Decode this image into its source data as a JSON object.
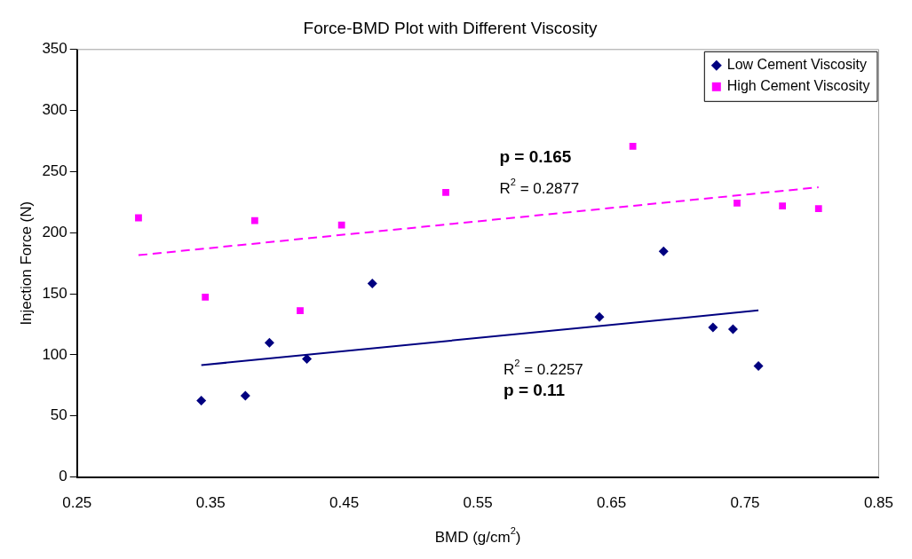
{
  "chart_data": {
    "type": "scatter",
    "title": "Force-BMD Plot with Different Viscosity",
    "xlabel": "BMD (g/cm$^{2}$)",
    "ylabel": "Injection Force (N)",
    "xlim": [
      0.25,
      0.85
    ],
    "xticks": [
      0.25,
      0.35,
      0.45,
      0.55,
      0.65,
      0.75,
      0.85
    ],
    "ylim": [
      0,
      350
    ],
    "yticks": [
      0,
      50,
      100,
      150,
      200,
      250,
      300,
      350
    ],
    "grid": false,
    "legend": "top right",
    "series": [
      {
        "name": "Low Cement Viscosity",
        "color": "#000080",
        "marker": "diamond",
        "x": [
          0.343,
          0.376,
          0.394,
          0.422,
          0.471,
          0.641,
          0.689,
          0.726,
          0.741,
          0.76
        ],
        "values": [
          62.6,
          66.6,
          110,
          96.7,
          158.5,
          131,
          184.8,
          122.5,
          121,
          90.8
        ]
      },
      {
        "name": "High Cement Viscosity",
        "color": "#ff00ff",
        "marker": "square",
        "x": [
          0.296,
          0.346,
          0.383,
          0.417,
          0.448,
          0.526,
          0.666,
          0.744,
          0.778,
          0.805
        ],
        "values": [
          212.2,
          147.2,
          210,
          136.2,
          206.3,
          233,
          270.7,
          224.3,
          221.9,
          219.7
        ]
      },
      {
        "type": "line",
        "color": "#000080",
        "marker": "none",
        "line_style": "solid",
        "x": [
          0.343,
          0.76
        ],
        "values": [
          91.6,
          136.4
        ]
      },
      {
        "type": "line",
        "color": "#ff00ff",
        "marker": "none",
        "line_style": "dashed",
        "x": [
          0.296,
          0.805
        ],
        "values": [
          181.6,
          237.2
        ]
      }
    ],
    "annotations": [
      "p = 0.165",
      "R$^{2}$ = 0.2877",
      "R$^{2}$ = 0.2257",
      "p = 0.11"
    ]
  }
}
